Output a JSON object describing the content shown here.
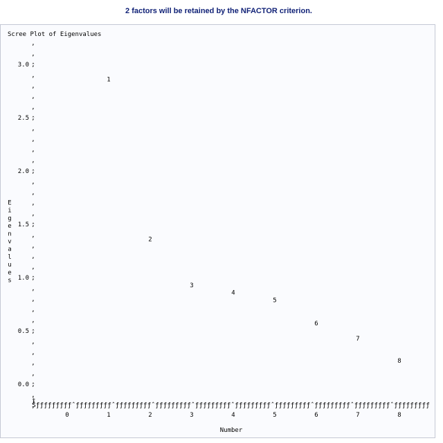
{
  "header": {
    "message": "2 factors will be retained by the NFACTOR criterion."
  },
  "chart_data": {
    "type": "scatter",
    "title": "Scree Plot of Eigenvalues",
    "xlabel": "Number",
    "ylabel": "Eigenvalues",
    "x_ticks": [
      0,
      1,
      2,
      3,
      4,
      5,
      6,
      7,
      8
    ],
    "x_tick_labels": [
      "0",
      "1",
      "2",
      "3",
      "4",
      "5",
      "6",
      "7",
      "8"
    ],
    "y_ticks": [
      0.0,
      0.5,
      1.0,
      1.5,
      2.0,
      2.5,
      3.0
    ],
    "y_tick_labels": [
      "0.0",
      "0.5",
      "1.0",
      "1.5",
      "2.0",
      "2.5",
      "3.0"
    ],
    "xlim": [
      -0.8,
      8.5
    ],
    "ylim": [
      -0.2,
      3.2
    ],
    "grid": false,
    "points": [
      {
        "x": 1,
        "y": 2.86,
        "label": "1"
      },
      {
        "x": 2,
        "y": 1.36,
        "label": "2"
      },
      {
        "x": 3,
        "y": 0.93,
        "label": "3"
      },
      {
        "x": 4,
        "y": 0.86,
        "label": "4"
      },
      {
        "x": 5,
        "y": 0.79,
        "label": "5"
      },
      {
        "x": 6,
        "y": 0.57,
        "label": "6"
      },
      {
        "x": 7,
        "y": 0.43,
        "label": "7"
      },
      {
        "x": 8,
        "y": 0.22,
        "label": "8"
      }
    ],
    "axis_glyphs": {
      "corner": "Š",
      "minor_tick": "‚",
      "major_tick": "ˆ",
      "dash_run": "ƒƒƒƒƒƒƒƒƒ",
      "x_origin": "Ì"
    }
  }
}
